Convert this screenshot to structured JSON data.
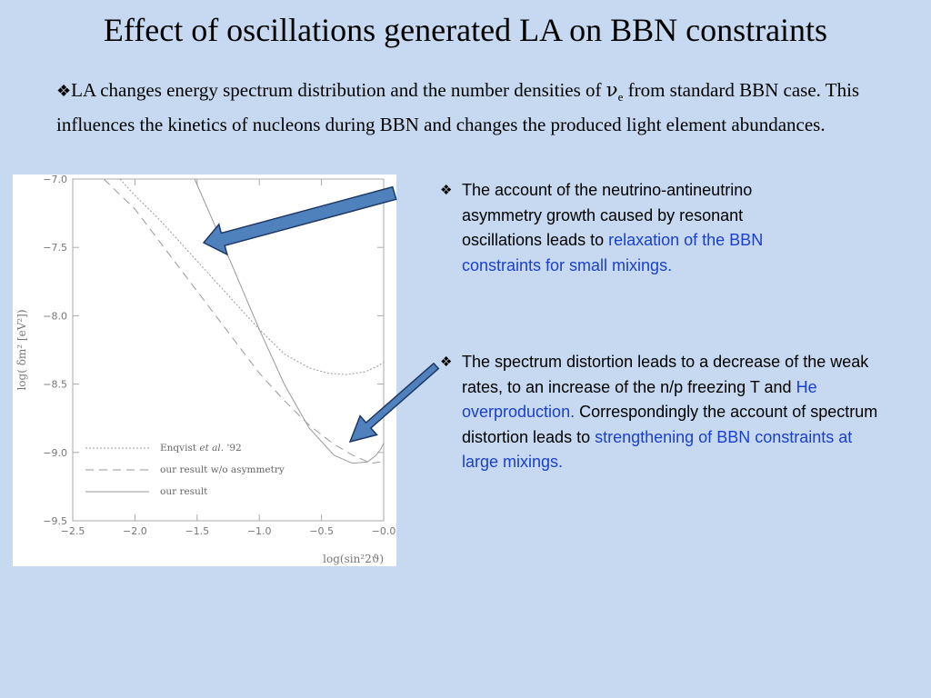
{
  "title": "Effect of oscillations generated LA on BBN constraints",
  "intro": {
    "bullet": "❖",
    "text_before": "LA changes  energy spectrum distribution and the number densities of  ",
    "nu": "ν",
    "nu_sub": "e",
    "text_after": "  from standard BBN case. This influences the kinetics  of nucleons  during BBN and changes the produced light element abundances."
  },
  "note1": {
    "bullet": "❖",
    "text": "The account of the neutrino-antineutrino asymmetry growth caused by resonant oscillations  leads to ",
    "highlight": "relaxation of the BBN constraints for small mixings."
  },
  "note2": {
    "bullet": "❖",
    "text1": "The spectrum distortion leads to a decrease  of  the weak rates,  to an increase of  the n/p freezing T and ",
    "highlight1": "He overproduction.",
    "text2": " Correspondingly  the account of  spectrum distortion leads to ",
    "highlight2": "strengthening of  BBN constraints at large mixings."
  },
  "colors": {
    "background": "#c6d9f0",
    "highlight": "#1a3fcc",
    "arrow": "#4f81bd",
    "arrow_outline": "#1f3864"
  },
  "chart_data": {
    "type": "line",
    "xlabel": "log(sin²2ϑ)",
    "ylabel": "log( δm²  [eV²])",
    "xlim": [
      -2.5,
      0.0
    ],
    "ylim": [
      -9.5,
      -7.0
    ],
    "x_ticks": [
      "−2.5",
      "−2.0",
      "−1.5",
      "−1.0",
      "−0.5",
      "−0.0"
    ],
    "x_tick_values": [
      -2.5,
      -2.0,
      -1.5,
      -1.0,
      -0.5,
      0.0
    ],
    "y_ticks": [
      "−7.0",
      "−7.5",
      "−8.0",
      "−8.5",
      "−9.0",
      "−9.5"
    ],
    "y_tick_values": [
      -7.0,
      -7.5,
      -8.0,
      -8.5,
      -9.0,
      -9.5
    ],
    "grid": false,
    "legend": [
      {
        "label_pre": "Enqvist ",
        "label_em": "et  al.",
        "label_post": " '92",
        "style": "dotted"
      },
      {
        "label_pre": "our  result  w/o  asymmetry",
        "label_em": "",
        "label_post": "",
        "style": "dashed"
      },
      {
        "label_pre": "our  result",
        "label_em": "",
        "label_post": "",
        "style": "solid"
      }
    ],
    "series": [
      {
        "style": "dotted",
        "x": [
          -2.12,
          -2.0,
          -1.8,
          -1.6,
          -1.4,
          -1.2,
          -1.0,
          -0.8,
          -0.6,
          -0.45,
          -0.3,
          -0.15,
          -0.05,
          0.0
        ],
        "y": [
          -7.0,
          -7.12,
          -7.3,
          -7.5,
          -7.7,
          -7.9,
          -8.1,
          -8.28,
          -8.38,
          -8.42,
          -8.43,
          -8.41,
          -8.37,
          -8.34
        ]
      },
      {
        "style": "dashed",
        "x": [
          -2.25,
          -2.0,
          -1.8,
          -1.6,
          -1.4,
          -1.2,
          -1.0,
          -0.8,
          -0.6,
          -0.4,
          -0.25,
          -0.1,
          -0.03
        ],
        "y": [
          -7.0,
          -7.22,
          -7.46,
          -7.7,
          -7.94,
          -8.18,
          -8.42,
          -8.62,
          -8.8,
          -8.94,
          -9.02,
          -9.08,
          -9.07
        ]
      },
      {
        "style": "solid",
        "x": [
          -1.52,
          -1.4,
          -1.2,
          -1.0,
          -0.8,
          -0.6,
          -0.4,
          -0.25,
          -0.13,
          -0.06,
          -0.02,
          0.0
        ],
        "y": [
          -7.0,
          -7.25,
          -7.67,
          -8.1,
          -8.5,
          -8.82,
          -9.02,
          -9.08,
          -9.07,
          -9.02,
          -8.97,
          -8.93
        ]
      }
    ]
  }
}
